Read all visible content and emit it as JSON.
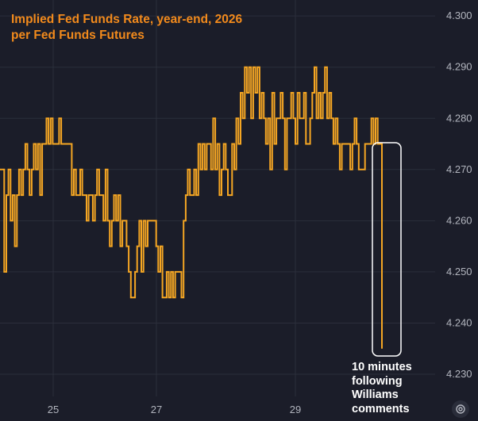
{
  "chart_data": {
    "type": "line",
    "title": "Implied Fed Funds Rate, year-end, 2026",
    "subtitle": "per Fed Funds Futures",
    "xlabel": "",
    "ylabel": "",
    "x_tick_labels": [
      "25",
      "27",
      "29"
    ],
    "y_tick_labels": [
      "4.230",
      "4.240",
      "4.250",
      "4.260",
      "4.270",
      "4.280",
      "4.290",
      "4.300"
    ],
    "ylim": [
      4.228,
      4.303
    ],
    "grid": true,
    "legend": "none",
    "series": [
      {
        "color": "#f5a623",
        "values": [
          4.27,
          4.27,
          4.25,
          4.265,
          4.27,
          4.26,
          4.265,
          4.255,
          4.265,
          4.27,
          4.265,
          4.27,
          4.275,
          4.27,
          4.265,
          4.27,
          4.275,
          4.27,
          4.275,
          4.265,
          4.275,
          4.275,
          4.28,
          4.275,
          4.28,
          4.275,
          4.275,
          4.275,
          4.28,
          4.275,
          4.275,
          4.275,
          4.275,
          4.275,
          4.265,
          4.27,
          4.265,
          4.265,
          4.27,
          4.265,
          4.265,
          4.26,
          4.265,
          4.265,
          4.26,
          4.265,
          4.27,
          4.265,
          4.265,
          4.26,
          4.27,
          4.26,
          4.255,
          4.26,
          4.265,
          4.26,
          4.265,
          4.255,
          4.26,
          4.26,
          4.255,
          4.25,
          4.245,
          4.245,
          4.25,
          4.255,
          4.26,
          4.25,
          4.26,
          4.255,
          4.26,
          4.26,
          4.26,
          4.26,
          4.255,
          4.25,
          4.255,
          4.245,
          4.245,
          4.25,
          4.245,
          4.25,
          4.245,
          4.25,
          4.25,
          4.25,
          4.245,
          4.26,
          4.265,
          4.27,
          4.265,
          4.265,
          4.27,
          4.265,
          4.275,
          4.27,
          4.275,
          4.27,
          4.275,
          4.275,
          4.27,
          4.28,
          4.27,
          4.275,
          4.265,
          4.27,
          4.275,
          4.27,
          4.265,
          4.265,
          4.275,
          4.27,
          4.28,
          4.275,
          4.285,
          4.28,
          4.29,
          4.285,
          4.29,
          4.28,
          4.29,
          4.285,
          4.29,
          4.28,
          4.285,
          4.28,
          4.275,
          4.28,
          4.27,
          4.285,
          4.275,
          4.28,
          4.28,
          4.285,
          4.28,
          4.27,
          4.28,
          4.28,
          4.285,
          4.28,
          4.275,
          4.285,
          4.28,
          4.28,
          4.285,
          4.275,
          4.275,
          4.28,
          4.285,
          4.29,
          4.28,
          4.285,
          4.28,
          4.285,
          4.29,
          4.28,
          4.285,
          4.28,
          4.275,
          4.28,
          4.275,
          4.27,
          4.275,
          4.275,
          4.275,
          4.275,
          4.27,
          4.275,
          4.28,
          4.275,
          4.27,
          4.27,
          4.27,
          4.275,
          4.275,
          4.275,
          4.28,
          4.275,
          4.28,
          4.275,
          4.275,
          4.235
        ]
      }
    ],
    "annotation": {
      "text_lines": [
        "10 minutes",
        "following",
        "Williams",
        "comments"
      ]
    }
  },
  "ui": {
    "settings_icon": "gear-icon"
  },
  "colors": {
    "background": "#1b1d29",
    "line": "#f5a623",
    "title": "#f28a1c",
    "axis_text": "#b2b5be",
    "grid": "#2b2e3b",
    "highlight_box": "#ffffff"
  }
}
